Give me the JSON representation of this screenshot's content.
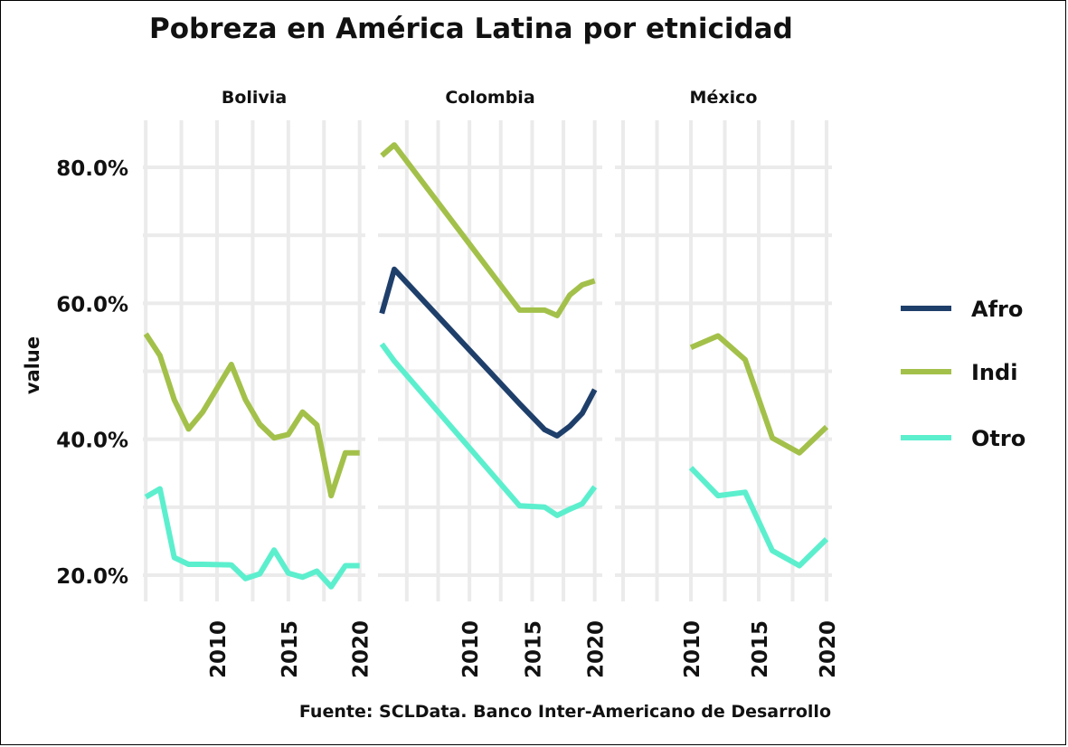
{
  "title": "Pobreza en América Latina por etnicidad",
  "caption": "Fuente: SCLData. Banco Inter-Americano de Desarrollo",
  "colors": {
    "Afro": "#1f3f6b",
    "Indi": "#a3c14a",
    "Otro": "#5cefce",
    "grid": "#ebebeb",
    "text": "#111111"
  },
  "chart_data": {
    "type": "line",
    "ylabel": "value",
    "xlabel": "",
    "ylim": [
      0.15,
      0.87
    ],
    "yticks": [
      0.2,
      0.4,
      0.6,
      0.8
    ],
    "ytick_labels": [
      "20.0%",
      "40.0%",
      "60.0%",
      "80.0%"
    ],
    "xticks": [
      2010,
      2015,
      2020
    ],
    "xtick_labels": [
      "2010",
      "2015",
      "2020"
    ],
    "grid": true,
    "legend_position": "right",
    "legend": [
      "Afro",
      "Indi",
      "Otro"
    ],
    "panels": [
      {
        "name": "Bolivia",
        "xlim": [
          2004.8,
          2020.4
        ],
        "series": [
          {
            "name": "Indi",
            "x": [
              2005,
              2006,
              2007,
              2008,
              2009,
              2011,
              2012,
              2013,
              2014,
              2015,
              2016,
              2017,
              2018,
              2019,
              2020
            ],
            "y": [
              0.555,
              0.523,
              0.458,
              0.415,
              0.44,
              0.51,
              0.458,
              0.422,
              0.402,
              0.407,
              0.44,
              0.421,
              0.317,
              0.38,
              0.38
            ]
          },
          {
            "name": "Otro",
            "x": [
              2005,
              2006,
              2007,
              2008,
              2009,
              2011,
              2012,
              2013,
              2014,
              2015,
              2016,
              2017,
              2018,
              2019,
              2020
            ],
            "y": [
              0.315,
              0.327,
              0.226,
              0.216,
              0.216,
              0.215,
              0.195,
              0.202,
              0.237,
              0.203,
              0.197,
              0.206,
              0.183,
              0.214,
              0.214
            ]
          }
        ]
      },
      {
        "name": "Colombia",
        "xlim": [
          2002.7,
          2020.6
        ],
        "series": [
          {
            "name": "Afro",
            "x": [
              2003,
              2004,
              2014,
              2016,
              2017,
              2018,
              2019,
              2020
            ],
            "y": [
              0.585,
              0.65,
              0.452,
              0.414,
              0.405,
              0.419,
              0.438,
              0.473
            ]
          },
          {
            "name": "Indi",
            "x": [
              2003,
              2004,
              2014,
              2016,
              2017,
              2018,
              2019,
              2020
            ],
            "y": [
              0.817,
              0.833,
              0.59,
              0.59,
              0.582,
              0.612,
              0.627,
              0.633
            ]
          },
          {
            "name": "Otro",
            "x": [
              2003,
              2004,
              2014,
              2016,
              2017,
              2018,
              2019,
              2020
            ],
            "y": [
              0.54,
              0.515,
              0.302,
              0.3,
              0.288,
              0.297,
              0.305,
              0.33
            ]
          }
        ]
      },
      {
        "name": "México",
        "xlim": [
          2004.4,
          2020.4
        ],
        "series": [
          {
            "name": "Indi",
            "x": [
              2010,
              2012,
              2014,
              2016,
              2018,
              2020
            ],
            "y": [
              0.535,
              0.552,
              0.517,
              0.402,
              0.38,
              0.418
            ]
          },
          {
            "name": "Otro",
            "x": [
              2010,
              2012,
              2014,
              2016,
              2018,
              2020
            ],
            "y": [
              0.358,
              0.317,
              0.322,
              0.236,
              0.214,
              0.253
            ]
          }
        ]
      }
    ]
  }
}
